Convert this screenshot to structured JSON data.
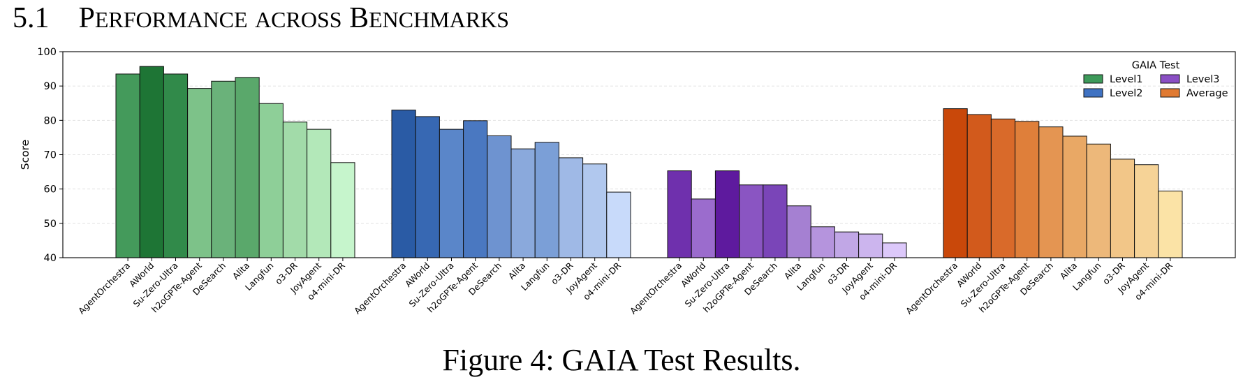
{
  "heading": {
    "number": "5.1",
    "words": [
      {
        "first": "P",
        "rest": "ERFORMANCE"
      },
      {
        "first": "",
        "rest": "ACROSS"
      },
      {
        "first": "B",
        "rest": "ENCHMARKS"
      }
    ]
  },
  "caption": "Figure 4: GAIA Test Results.",
  "chart_data": {
    "type": "bar",
    "ylabel": "Score",
    "ylim": [
      40,
      100
    ],
    "yticks": [
      40,
      50,
      60,
      70,
      80,
      90,
      100
    ],
    "grid": "horizontal dashed",
    "legend": {
      "title": "GAIA Test",
      "placement": "top-right",
      "columns": 2,
      "entries": [
        {
          "label": "Level1",
          "color": "#3d9a5a"
        },
        {
          "label": "Level3",
          "color": "#8a4fc4"
        },
        {
          "label": "Level2",
          "color": "#3f72c2"
        },
        {
          "label": "Average",
          "color": "#e07a32"
        }
      ]
    },
    "categories": [
      "AgentOrchestra",
      "AWorld",
      "Su-Zero-Ultra",
      "h2oGPTe-Agent",
      "DeSearch",
      "Alita",
      "Langfun",
      "o3-DR",
      "JoyAgent",
      "o4-mini-DR"
    ],
    "series": [
      {
        "name": "Level1",
        "values": [
          93.5,
          95.7,
          93.5,
          89.3,
          91.4,
          92.5,
          84.9,
          79.5,
          77.4,
          67.7
        ],
        "colors": [
          "#449a5b",
          "#1e7535",
          "#318a4a",
          "#7dc289",
          "#6ab27a",
          "#5aa86b",
          "#8ecf98",
          "#a2dba9",
          "#b3e8b9",
          "#c6f5cc"
        ]
      },
      {
        "name": "Level2",
        "values": [
          83.0,
          81.1,
          77.4,
          79.9,
          75.5,
          71.7,
          73.6,
          69.1,
          67.3,
          59.1
        ],
        "colors": [
          "#2a5ba5",
          "#3768b3",
          "#5a86c9",
          "#4a78c1",
          "#6e93d0",
          "#8aa9dc",
          "#7b9fd7",
          "#9fb9e6",
          "#b1c8ee",
          "#c8dafa"
        ]
      },
      {
        "name": "Level3",
        "values": [
          65.3,
          57.1,
          65.3,
          61.2,
          61.2,
          55.1,
          49.0,
          47.5,
          46.9,
          44.3
        ],
        "colors": [
          "#6f30ad",
          "#9b6ccd",
          "#5e1a9e",
          "#8a55c2",
          "#7a45b8",
          "#a580d2",
          "#b594dd",
          "#c1a7e6",
          "#ccb5ee",
          "#dcc8fa"
        ]
      },
      {
        "name": "Average",
        "values": [
          83.4,
          81.7,
          80.4,
          79.7,
          78.1,
          75.4,
          73.1,
          68.7,
          67.1,
          59.4
        ],
        "colors": [
          "#c9480a",
          "#d25a1c",
          "#d96a2a",
          "#df7f3a",
          "#e49552",
          "#e9a865",
          "#edb87a",
          "#f2c688",
          "#f6d397",
          "#fbe3a6"
        ]
      }
    ]
  }
}
